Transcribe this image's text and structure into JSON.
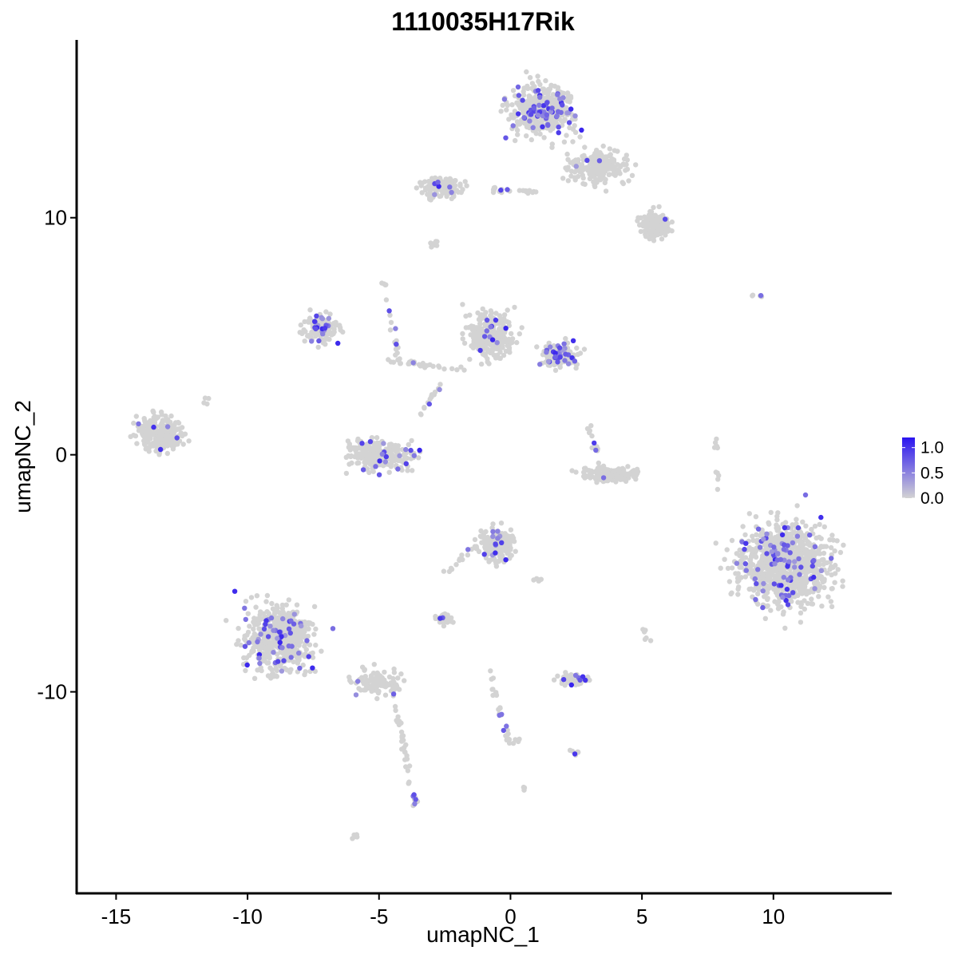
{
  "chart_data": {
    "type": "scatter",
    "title": "1110035H17Rik",
    "xlabel": "umapNC_1",
    "ylabel": "umapNC_2",
    "xlim": [
      -16.5,
      14.5
    ],
    "ylim": [
      -18.5,
      17.5
    ],
    "x_ticks": [
      -15,
      -10,
      -5,
      0,
      5,
      10
    ],
    "x_tick_labels": [
      "-15",
      "-10",
      "-5",
      "0",
      "5",
      "10"
    ],
    "y_ticks": [
      -10,
      0,
      10
    ],
    "y_tick_labels": [
      "-10",
      "0",
      "10"
    ],
    "grid": false,
    "legend_position": "right",
    "color_scale": {
      "low_color": "#d3d3d3",
      "high_color": "#2a14f0",
      "min": 0.0,
      "max": 1.2,
      "tick_values": [
        0.0,
        0.5,
        1.0
      ],
      "tick_labels": [
        "0.0",
        "0.5",
        "1.0"
      ]
    },
    "clusters": [
      {
        "cx": 1.2,
        "cy": 14.5,
        "sx": 1.1,
        "sy": 1.0,
        "n": 420,
        "frac": 0.13
      },
      {
        "cx": 3.3,
        "cy": 12.2,
        "sx": 1.0,
        "sy": 0.7,
        "n": 200,
        "frac": 0.04
      },
      {
        "cx": 5.5,
        "cy": 9.7,
        "sx": 0.6,
        "sy": 0.5,
        "n": 140,
        "frac": 0.03
      },
      {
        "cx": -2.6,
        "cy": 11.3,
        "sx": 0.7,
        "sy": 0.5,
        "n": 110,
        "frac": 0.05
      },
      {
        "cx": -7.2,
        "cy": 5.3,
        "sx": 0.6,
        "sy": 0.6,
        "n": 120,
        "frac": 0.12
      },
      {
        "cx": -0.7,
        "cy": 5.0,
        "sx": 0.8,
        "sy": 0.9,
        "n": 260,
        "frac": 0.04
      },
      {
        "cx": 1.9,
        "cy": 4.2,
        "sx": 0.6,
        "sy": 0.5,
        "n": 150,
        "frac": 0.2
      },
      {
        "cx": -13.3,
        "cy": 0.9,
        "sx": 0.8,
        "sy": 0.7,
        "n": 230,
        "frac": 0.03
      },
      {
        "cx": -5.0,
        "cy": 0.0,
        "sx": 1.1,
        "sy": 0.6,
        "n": 260,
        "frac": 0.05
      },
      {
        "cx": 3.8,
        "cy": -0.8,
        "sx": 1.0,
        "sy": 0.3,
        "n": 130,
        "frac": 0.01
      },
      {
        "cx": 10.5,
        "cy": -4.6,
        "sx": 1.6,
        "sy": 1.6,
        "n": 900,
        "frac": 0.09
      },
      {
        "cx": -0.5,
        "cy": -3.8,
        "sx": 0.6,
        "sy": 0.6,
        "n": 220,
        "frac": 0.06
      },
      {
        "cx": -8.8,
        "cy": -7.7,
        "sx": 1.2,
        "sy": 1.3,
        "n": 520,
        "frac": 0.1
      },
      {
        "cx": -5.0,
        "cy": -9.6,
        "sx": 0.9,
        "sy": 0.5,
        "n": 110,
        "frac": 0.03
      },
      {
        "cx": 2.4,
        "cy": -9.5,
        "sx": 0.6,
        "sy": 0.2,
        "n": 60,
        "frac": 0.08
      },
      {
        "cx": -2.5,
        "cy": -6.9,
        "sx": 0.3,
        "sy": 0.2,
        "n": 28,
        "frac": 0.1
      }
    ],
    "paths": [
      {
        "x1": -1.0,
        "y1": 11.2,
        "x2": 1.0,
        "y2": 11.1,
        "n": 22
      },
      {
        "x1": -4.8,
        "y1": 7.3,
        "x2": -4.2,
        "y2": 3.8,
        "n": 20
      },
      {
        "x1": -4.8,
        "y1": 4.0,
        "x2": -1.8,
        "y2": 3.6,
        "n": 30
      },
      {
        "x1": -2.5,
        "y1": 3.2,
        "x2": -3.6,
        "y2": 1.5,
        "n": 16
      },
      {
        "x1": -4.5,
        "y1": -9.8,
        "x2": -3.6,
        "y2": -14.8,
        "n": 40
      },
      {
        "x1": -0.8,
        "y1": -9.2,
        "x2": 0.0,
        "y2": -12.2,
        "n": 24
      },
      {
        "x1": -2.7,
        "y1": -5.2,
        "x2": -1.2,
        "y2": -3.8,
        "n": 16
      },
      {
        "x1": 7.8,
        "y1": 0.8,
        "x2": 7.9,
        "y2": -1.5,
        "n": 10
      },
      {
        "x1": 3.0,
        "y1": 1.4,
        "x2": 3.3,
        "y2": 0.0,
        "n": 12
      },
      {
        "x1": -3.2,
        "y1": 8.8,
        "x2": -2.7,
        "y2": 9.0,
        "n": 8
      },
      {
        "x1": 0.8,
        "y1": -5.3,
        "x2": 1.2,
        "y2": -5.3,
        "n": 6
      },
      {
        "x1": 2.3,
        "y1": -12.4,
        "x2": 2.6,
        "y2": -12.7,
        "n": 8
      },
      {
        "x1": -6.0,
        "y1": -16.2,
        "x2": -5.8,
        "y2": -16.0,
        "n": 5
      },
      {
        "x1": 9.2,
        "y1": 6.7,
        "x2": 9.7,
        "y2": 6.7,
        "n": 5
      },
      {
        "x1": 5.0,
        "y1": -7.3,
        "x2": 5.2,
        "y2": -7.8,
        "n": 6
      },
      {
        "x1": -11.5,
        "y1": 2.7,
        "x2": -11.6,
        "y2": 2.1,
        "n": 4
      },
      {
        "x1": 0.5,
        "y1": -14.0,
        "x2": 0.6,
        "y2": -14.1,
        "n": 4
      },
      {
        "x1": -0.1,
        "y1": -12.0,
        "x2": 0.4,
        "y2": -12.1,
        "n": 5
      }
    ]
  }
}
